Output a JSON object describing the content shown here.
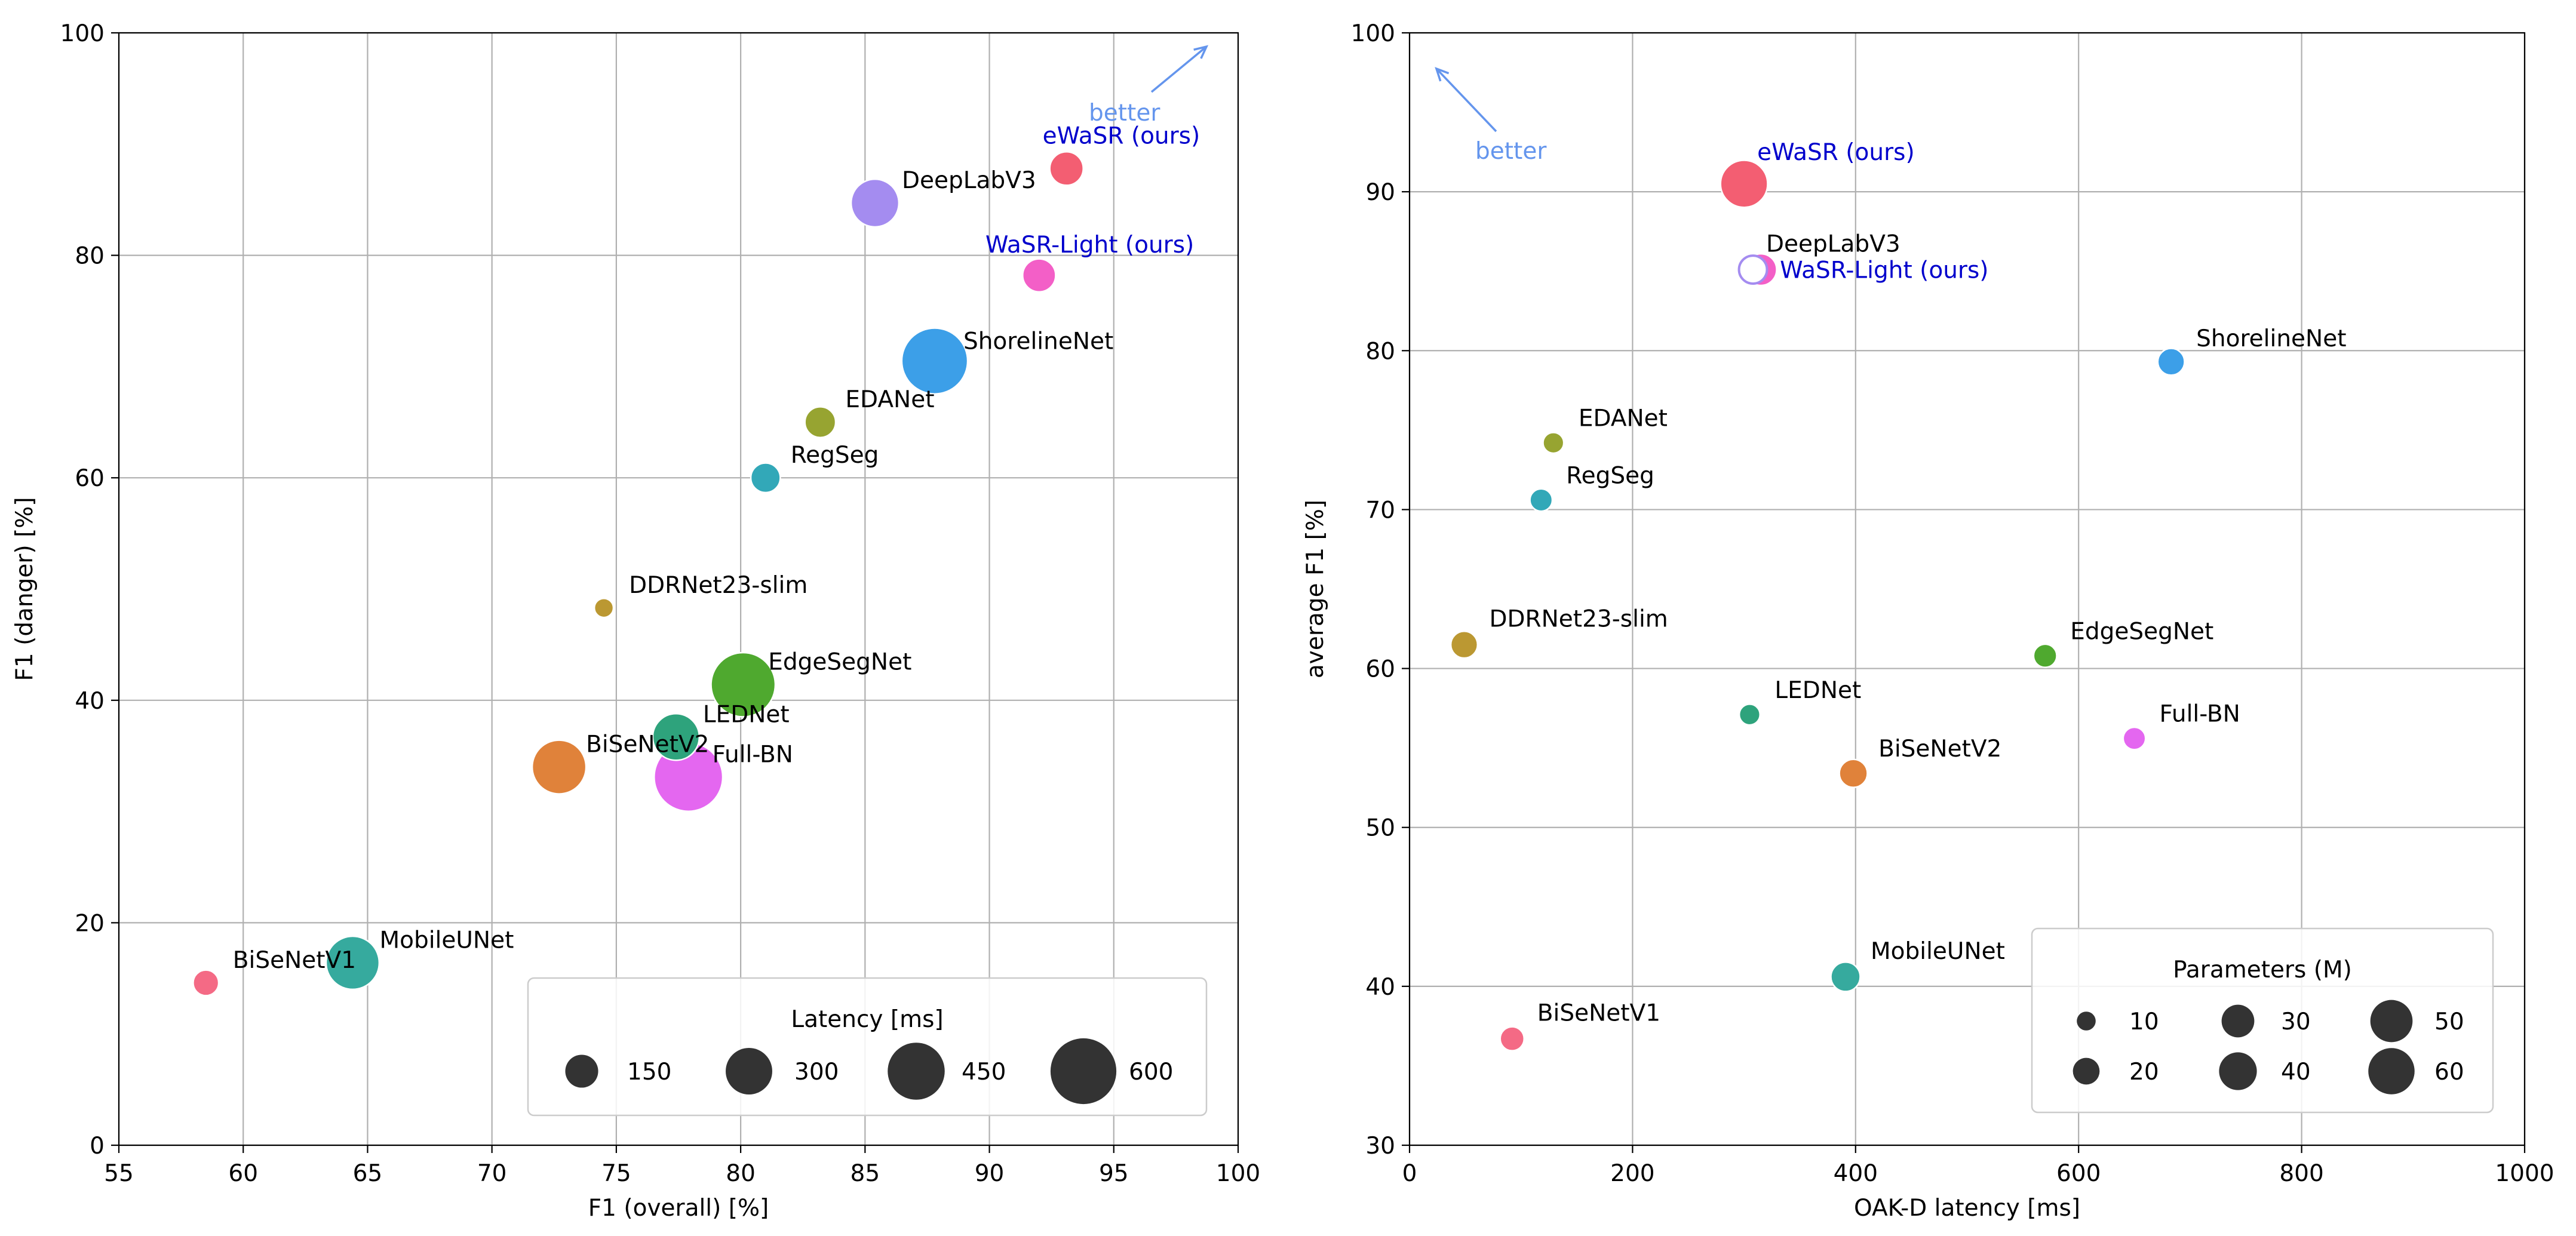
{
  "chart_data": [
    {
      "type": "scatter",
      "xlabel": "F1 (overall) [%]",
      "ylabel": "F1 (danger) [%]",
      "xlim": [
        55,
        100
      ],
      "ylim": [
        0,
        100
      ],
      "xticks": [
        55,
        60,
        65,
        70,
        75,
        80,
        85,
        90,
        95,
        100
      ],
      "yticks": [
        0,
        20,
        40,
        60,
        80,
        100
      ],
      "grid": true,
      "size_encoding": "Latency [ms]",
      "better_direction": "top-right",
      "better_label": "better",
      "points": [
        {
          "label": "eWaSR (ours)",
          "x": 93.1,
          "y": 87.8,
          "size": 155,
          "color": "#f35e72",
          "highlight": true
        },
        {
          "label": "DeepLabV3",
          "x": 85.4,
          "y": 84.7,
          "size": 315,
          "color": "#a48cf0",
          "highlight": false
        },
        {
          "label": "WaSR-Light (ours)",
          "x": 92.0,
          "y": 78.2,
          "size": 150,
          "color": "#f35fc7",
          "highlight": true
        },
        {
          "label": "ShorelineNet",
          "x": 87.8,
          "y": 70.5,
          "size": 600,
          "color": "#3c9fe8",
          "highlight": false
        },
        {
          "label": "EDANet",
          "x": 83.2,
          "y": 65.0,
          "size": 130,
          "color": "#97a431",
          "highlight": false
        },
        {
          "label": "RegSeg",
          "x": 81.0,
          "y": 60.0,
          "size": 120,
          "color": "#32a8b8",
          "highlight": false
        },
        {
          "label": "DDRNet23-slim",
          "x": 74.5,
          "y": 48.3,
          "size": 50,
          "color": "#bb9832",
          "highlight": false
        },
        {
          "label": "EdgeSegNet",
          "x": 80.1,
          "y": 41.4,
          "size": 570,
          "color": "#4fa92f",
          "highlight": false
        },
        {
          "label": "LEDNet",
          "x": 77.4,
          "y": 36.7,
          "size": 300,
          "color": "#2ea37c",
          "highlight": false
        },
        {
          "label": "BiSeNetV2",
          "x": 72.7,
          "y": 34.0,
          "size": 400,
          "color": "#e0823a",
          "highlight": false
        },
        {
          "label": "Full-BN",
          "x": 77.9,
          "y": 33.1,
          "size": 650,
          "color": "#e467f0",
          "highlight": false
        },
        {
          "label": "MobileUNet",
          "x": 64.4,
          "y": 16.4,
          "size": 390,
          "color": "#36aa9e",
          "highlight": false
        },
        {
          "label": "BiSeNetV1",
          "x": 58.5,
          "y": 14.6,
          "size": 90,
          "color": "#f46a85",
          "highlight": false
        }
      ],
      "legend": {
        "title": "Latency [ms]",
        "placement": "lower-right",
        "entries": [
          {
            "label": "150",
            "value": 150
          },
          {
            "label": "300",
            "value": 300
          },
          {
            "label": "450",
            "value": 450
          },
          {
            "label": "600",
            "value": 600
          }
        ]
      }
    },
    {
      "type": "scatter",
      "xlabel": "OAK-D latency [ms]",
      "ylabel": "average F1 [%]",
      "xlim": [
        0,
        1000
      ],
      "ylim": [
        30,
        100
      ],
      "xticks": [
        0,
        200,
        400,
        600,
        800,
        1000
      ],
      "yticks": [
        30,
        40,
        50,
        60,
        70,
        80,
        90,
        100
      ],
      "grid": true,
      "size_encoding": "Parameters (M)",
      "better_direction": "top-left",
      "better_label": "better",
      "points": [
        {
          "label": "eWaSR (ours)",
          "x": 300,
          "y": 90.5,
          "size": 62,
          "color": "#f35e72",
          "highlight": true
        },
        {
          "label": "DeepLabV3",
          "x": 308,
          "y": 85.1,
          "size": 22,
          "color": "#a48cf0",
          "highlight": false,
          "hollow": true
        },
        {
          "label": "WaSR-Light (ours)",
          "x": 315,
          "y": 85.1,
          "size": 28,
          "color": "#f35fc7",
          "highlight": true
        },
        {
          "label": "ShorelineNet",
          "x": 683,
          "y": 79.3,
          "size": 20,
          "color": "#3c9fe8",
          "highlight": false
        },
        {
          "label": "EDANet",
          "x": 129,
          "y": 74.2,
          "size": 12,
          "color": "#97a431",
          "highlight": false
        },
        {
          "label": "RegSeg",
          "x": 118,
          "y": 70.6,
          "size": 14,
          "color": "#32a8b8",
          "highlight": false
        },
        {
          "label": "DDRNet23-slim",
          "x": 49,
          "y": 61.5,
          "size": 20,
          "color": "#bb9832",
          "highlight": false
        },
        {
          "label": "EdgeSegNet",
          "x": 570,
          "y": 60.8,
          "size": 15,
          "color": "#4fa92f",
          "highlight": false
        },
        {
          "label": "LEDNet",
          "x": 305,
          "y": 57.1,
          "size": 12,
          "color": "#2ea37c",
          "highlight": false
        },
        {
          "label": "Full-BN",
          "x": 650,
          "y": 55.6,
          "size": 14,
          "color": "#e467f0",
          "highlight": false
        },
        {
          "label": "BiSeNetV2",
          "x": 398,
          "y": 53.4,
          "size": 22,
          "color": "#e0823a",
          "highlight": false
        },
        {
          "label": "MobileUNet",
          "x": 391,
          "y": 40.6,
          "size": 24,
          "color": "#36aa9e",
          "highlight": false
        },
        {
          "label": "BiSeNetV1",
          "x": 92,
          "y": 36.7,
          "size": 16,
          "color": "#f46a85",
          "highlight": false
        }
      ],
      "legend": {
        "title": "Parameters (M)",
        "placement": "lower-right",
        "entries": [
          {
            "label": "10",
            "value": 10
          },
          {
            "label": "20",
            "value": 20
          },
          {
            "label": "30",
            "value": 30
          },
          {
            "label": "40",
            "value": 40
          },
          {
            "label": "50",
            "value": 50
          },
          {
            "label": "60",
            "value": 60
          }
        ]
      }
    }
  ],
  "colors": {
    "better_arrow": "#6495ed",
    "highlight_label": "#0000cc",
    "legend_marker": "#333333"
  }
}
